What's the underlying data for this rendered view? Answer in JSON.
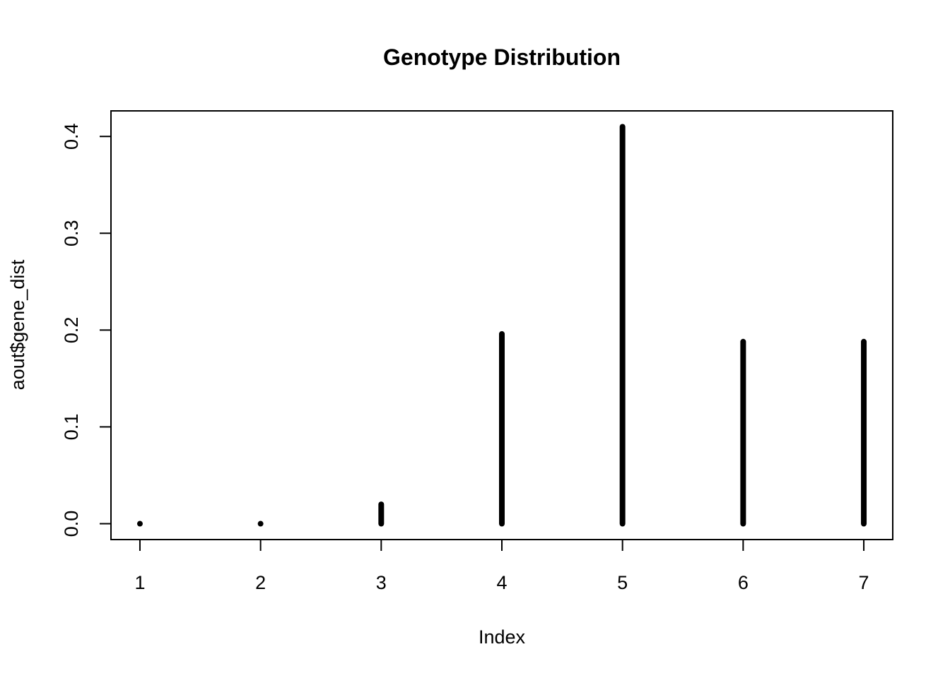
{
  "chart_data": {
    "type": "bar",
    "title": "Genotype Distribution",
    "xlabel": "Index",
    "ylabel": "aout$gene_dist",
    "x": [
      1,
      2,
      3,
      4,
      5,
      6,
      7
    ],
    "values": [
      0.0,
      0.0,
      0.02,
      0.196,
      0.41,
      0.188,
      0.188
    ],
    "xlim": [
      0.76,
      7.24
    ],
    "ylim": [
      -0.0164,
      0.4264
    ],
    "xticks": [
      1,
      2,
      3,
      4,
      5,
      6,
      7
    ],
    "yticks": [
      0.0,
      0.1,
      0.2,
      0.3,
      0.4
    ],
    "xtick_labels": [
      "1",
      "2",
      "3",
      "4",
      "5",
      "6",
      "7"
    ],
    "ytick_labels": [
      "0.0",
      "0.1",
      "0.2",
      "0.3",
      "0.4"
    ],
    "grid": false,
    "legend": "none",
    "bar_color": "#000000"
  }
}
